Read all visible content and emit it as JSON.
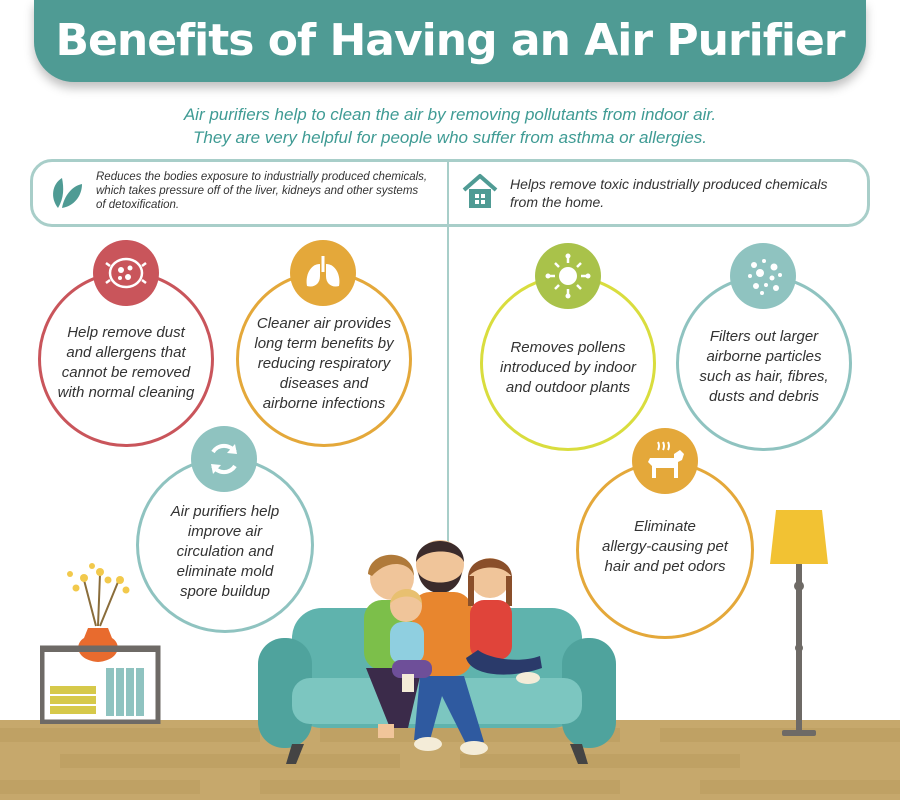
{
  "title": "Benefits of Having an Air Purifier",
  "subtitle": {
    "line1": "Air purifiers help to clean the air by removing pollutants from indoor air.",
    "line2": "They are very helpful for people who suffer from asthma or allergies."
  },
  "top_left": {
    "icon": "leaf-icon",
    "text_lines": [
      "Reduces the bodies exposure to industrially produced chemicals,",
      "which takes pressure off of the liver, kidneys and other systems",
      "of detoxification."
    ]
  },
  "top_right": {
    "icon": "house-icon",
    "text_lines": [
      "Helps remove toxic industrially produced chemicals",
      "from the home."
    ]
  },
  "benefits": [
    {
      "id": "dust",
      "icon": "dust-icon",
      "color": "#c9555b",
      "lines": [
        "Help remove dust",
        "and allergens that",
        "cannot be removed",
        "with normal cleaning"
      ]
    },
    {
      "id": "lungs",
      "icon": "lungs-icon",
      "color": "#e4a83a",
      "lines": [
        "Cleaner air provides",
        "long term benefits by",
        "reducing respiratory",
        "diseases and",
        "airborne infections"
      ]
    },
    {
      "id": "circulation",
      "icon": "recycle-icon",
      "color": "#8fc3c0",
      "lines": [
        "Air purifiers help",
        "improve air",
        "circulation and",
        "eliminate mold",
        "spore buildup"
      ]
    },
    {
      "id": "pollen",
      "icon": "pollen-icon",
      "color": "#a9c24a",
      "lines": [
        "Removes pollens",
        "introduced by indoor",
        "and outdoor plants"
      ]
    },
    {
      "id": "particles",
      "icon": "particles-icon",
      "color": "#8fc3c0",
      "lines": [
        "Filters out larger",
        "airborne particles",
        "such as hair, fibres,",
        "dusts and debris"
      ]
    },
    {
      "id": "pets",
      "icon": "dog-icon",
      "color": "#e4a83a",
      "lines": [
        "Eliminate",
        "allergy-causing pet",
        "hair and pet odors"
      ]
    }
  ],
  "colors": {
    "banner": "#4f9b94",
    "accent_text": "#3f9b94",
    "outline": "#a8cec9",
    "sofa": "#5fb3ad",
    "floor": "#c6a86c"
  }
}
